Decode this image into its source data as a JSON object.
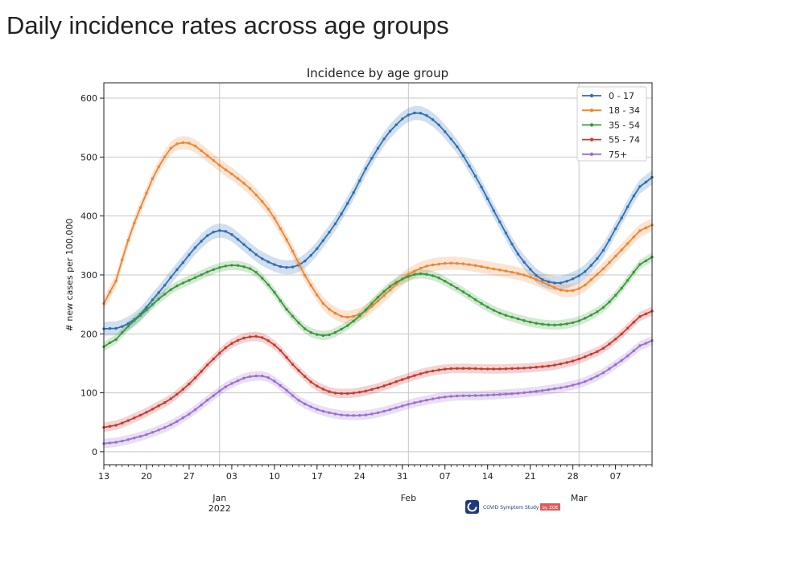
{
  "page": {
    "title": "Daily incidence rates across age groups"
  },
  "watermark": {
    "text": "COVID Symptom Study",
    "badge": "by ZOE",
    "brand_color": "#1f3a7a",
    "badge_color": "#e05a5a"
  },
  "chart_data": {
    "type": "line",
    "title": "Incidence by age group",
    "xlabel": "",
    "ylabel": "# new cases per 100,000",
    "x_range": [
      "2021-12-13",
      "2022-03-13"
    ],
    "ylim": [
      -22,
      626
    ],
    "grid": true,
    "legend_position": "top-right",
    "x_ticks": [
      {
        "date": "2021-12-13",
        "label": "13"
      },
      {
        "date": "2021-12-20",
        "label": "20"
      },
      {
        "date": "2021-12-27",
        "label": "27"
      },
      {
        "date": "2022-01-03",
        "label": "03"
      },
      {
        "date": "2022-01-10",
        "label": "10"
      },
      {
        "date": "2022-01-17",
        "label": "17"
      },
      {
        "date": "2022-01-24",
        "label": "24"
      },
      {
        "date": "2022-01-31",
        "label": "31"
      },
      {
        "date": "2022-02-07",
        "label": "07"
      },
      {
        "date": "2022-02-14",
        "label": "14"
      },
      {
        "date": "2022-02-21",
        "label": "21"
      },
      {
        "date": "2022-02-28",
        "label": "28"
      },
      {
        "date": "2022-03-07",
        "label": "07"
      }
    ],
    "x_gridlines": [
      "2022-01-01",
      "2022-02-01",
      "2022-03-01"
    ],
    "month_labels": [
      {
        "date": "2022-01-01",
        "label": "Jan",
        "year": "2022"
      },
      {
        "date": "2022-02-01",
        "label": "Feb"
      },
      {
        "date": "2022-03-01",
        "label": "Mar"
      }
    ],
    "y_ticks": [
      0,
      100,
      200,
      300,
      400,
      500,
      600
    ],
    "series": [
      {
        "name": "0 - 17",
        "color": "#2f6fb3",
        "points": [
          [
            "2021-12-13",
            205
          ],
          [
            "2021-12-15",
            212
          ],
          [
            "2021-12-17",
            210
          ],
          [
            "2021-12-20",
            245
          ],
          [
            "2021-12-24",
            295
          ],
          [
            "2021-12-27",
            335
          ],
          [
            "2021-12-30",
            370
          ],
          [
            "2022-01-01",
            382
          ],
          [
            "2022-01-03",
            372
          ],
          [
            "2022-01-06",
            340
          ],
          [
            "2022-01-10",
            315
          ],
          [
            "2022-01-13",
            310
          ],
          [
            "2022-01-15",
            318
          ],
          [
            "2022-01-18",
            358
          ],
          [
            "2022-01-21",
            400
          ],
          [
            "2022-01-24",
            460
          ],
          [
            "2022-01-27",
            520
          ],
          [
            "2022-01-31",
            568
          ],
          [
            "2022-02-02",
            580
          ],
          [
            "2022-02-04",
            575
          ],
          [
            "2022-02-07",
            545
          ],
          [
            "2022-02-10",
            505
          ],
          [
            "2022-02-14",
            430
          ],
          [
            "2022-02-18",
            350
          ],
          [
            "2022-02-21",
            305
          ],
          [
            "2022-02-24",
            283
          ],
          [
            "2022-02-28",
            290
          ],
          [
            "2022-03-03",
            312
          ],
          [
            "2022-03-06",
            355
          ],
          [
            "2022-03-09",
            420
          ],
          [
            "2022-03-13",
            480
          ]
        ]
      },
      {
        "name": "18 - 34",
        "color": "#ef8433",
        "points": [
          [
            "2021-12-13",
            208
          ],
          [
            "2021-12-15",
            295
          ],
          [
            "2021-12-17",
            365
          ],
          [
            "2021-12-20",
            440
          ],
          [
            "2021-12-23",
            510
          ],
          [
            "2021-12-26",
            533
          ],
          [
            "2021-12-28",
            520
          ],
          [
            "2022-01-01",
            485
          ],
          [
            "2022-01-04",
            465
          ],
          [
            "2022-01-07",
            438
          ],
          [
            "2022-01-10",
            400
          ],
          [
            "2022-01-14",
            320
          ],
          [
            "2022-01-17",
            260
          ],
          [
            "2022-01-20",
            230
          ],
          [
            "2022-01-23",
            225
          ],
          [
            "2022-01-26",
            245
          ],
          [
            "2022-01-30",
            285
          ],
          [
            "2022-02-02",
            310
          ],
          [
            "2022-02-06",
            320
          ],
          [
            "2022-02-10",
            320
          ],
          [
            "2022-02-14",
            312
          ],
          [
            "2022-02-18",
            305
          ],
          [
            "2022-02-21",
            298
          ],
          [
            "2022-02-24",
            282
          ],
          [
            "2022-02-28",
            267
          ],
          [
            "2022-03-02",
            282
          ],
          [
            "2022-03-06",
            320
          ],
          [
            "2022-03-10",
            365
          ],
          [
            "2022-03-13",
            395
          ]
        ]
      },
      {
        "name": "35 - 54",
        "color": "#3a9a3a",
        "points": [
          [
            "2021-12-13",
            165
          ],
          [
            "2021-12-16",
            205
          ],
          [
            "2021-12-20",
            240
          ],
          [
            "2021-12-24",
            278
          ],
          [
            "2021-12-28",
            295
          ],
          [
            "2022-01-01",
            315
          ],
          [
            "2022-01-05",
            318
          ],
          [
            "2022-01-08",
            300
          ],
          [
            "2022-01-11",
            255
          ],
          [
            "2022-01-14",
            215
          ],
          [
            "2022-01-17",
            193
          ],
          [
            "2022-01-20",
            200
          ],
          [
            "2022-01-24",
            228
          ],
          [
            "2022-01-28",
            275
          ],
          [
            "2022-02-01",
            300
          ],
          [
            "2022-02-04",
            305
          ],
          [
            "2022-02-07",
            290
          ],
          [
            "2022-02-11",
            265
          ],
          [
            "2022-02-15",
            238
          ],
          [
            "2022-02-19",
            225
          ],
          [
            "2022-02-23",
            215
          ],
          [
            "2022-02-27",
            215
          ],
          [
            "2022-03-02",
            225
          ],
          [
            "2022-03-06",
            250
          ],
          [
            "2022-03-10",
            305
          ],
          [
            "2022-03-13",
            343
          ]
        ]
      },
      {
        "name": "55 - 74",
        "color": "#c83a32",
        "points": [
          [
            "2021-12-13",
            38
          ],
          [
            "2021-12-17",
            52
          ],
          [
            "2021-12-21",
            72
          ],
          [
            "2021-12-25",
            95
          ],
          [
            "2021-12-29",
            135
          ],
          [
            "2022-01-01",
            170
          ],
          [
            "2022-01-04",
            192
          ],
          [
            "2022-01-06",
            197
          ],
          [
            "2022-01-09",
            195
          ],
          [
            "2022-01-12",
            160
          ],
          [
            "2022-01-15",
            125
          ],
          [
            "2022-01-18",
            103
          ],
          [
            "2022-01-21",
            97
          ],
          [
            "2022-01-25",
            102
          ],
          [
            "2022-01-29",
            115
          ],
          [
            "2022-02-02",
            130
          ],
          [
            "2022-02-06",
            140
          ],
          [
            "2022-02-10",
            142
          ],
          [
            "2022-02-14",
            140
          ],
          [
            "2022-02-18",
            141
          ],
          [
            "2022-02-22",
            143
          ],
          [
            "2022-02-26",
            148
          ],
          [
            "2022-03-02",
            160
          ],
          [
            "2022-03-06",
            180
          ],
          [
            "2022-03-10",
            220
          ],
          [
            "2022-03-13",
            248
          ]
        ]
      },
      {
        "name": "75+",
        "color": "#9b6fcf",
        "points": [
          [
            "2021-12-13",
            12
          ],
          [
            "2021-12-17",
            20
          ],
          [
            "2021-12-21",
            32
          ],
          [
            "2021-12-25",
            50
          ],
          [
            "2021-12-29",
            78
          ],
          [
            "2022-01-01",
            105
          ],
          [
            "2022-01-04",
            122
          ],
          [
            "2022-01-07",
            132
          ],
          [
            "2022-01-10",
            125
          ],
          [
            "2022-01-13",
            92
          ],
          [
            "2022-01-16",
            75
          ],
          [
            "2022-01-19",
            65
          ],
          [
            "2022-01-23",
            60
          ],
          [
            "2022-01-27",
            65
          ],
          [
            "2022-01-31",
            78
          ],
          [
            "2022-02-04",
            88
          ],
          [
            "2022-02-08",
            95
          ],
          [
            "2022-02-12",
            95
          ],
          [
            "2022-02-16",
            97
          ],
          [
            "2022-02-20",
            100
          ],
          [
            "2022-02-24",
            105
          ],
          [
            "2022-02-28",
            112
          ],
          [
            "2022-03-03",
            122
          ],
          [
            "2022-03-06",
            140
          ],
          [
            "2022-03-10",
            170
          ],
          [
            "2022-03-13",
            198
          ]
        ]
      }
    ]
  }
}
